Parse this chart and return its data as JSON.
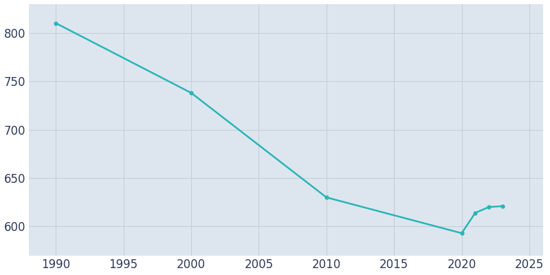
{
  "years": [
    1990,
    2000,
    2010,
    2020,
    2021,
    2022,
    2023
  ],
  "population": [
    810,
    738,
    630,
    593,
    614,
    620,
    621
  ],
  "line_color": "#2AB5B5",
  "marker": "o",
  "marker_size": 3.5,
  "line_width": 1.8,
  "bg_color": "#FFFFFF",
  "plot_bg_color": "#DDE6EF",
  "xlim": [
    1988,
    2026
  ],
  "ylim": [
    570,
    830
  ],
  "xticks": [
    1990,
    1995,
    2000,
    2005,
    2010,
    2015,
    2020,
    2025
  ],
  "yticks": [
    600,
    650,
    700,
    750,
    800
  ],
  "grid_color": "#C4D0DC",
  "tick_color": "#2E3A59",
  "tick_fontsize": 12
}
